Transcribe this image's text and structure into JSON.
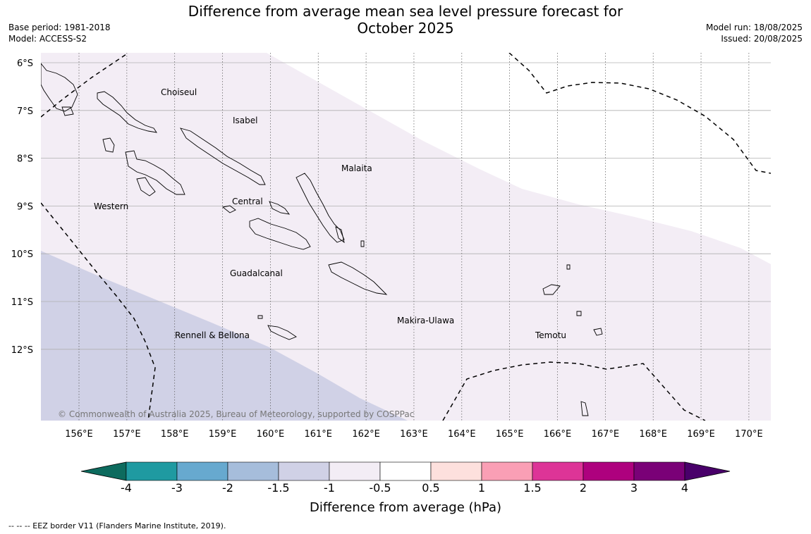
{
  "header": {
    "title_line1": "Difference from average mean sea level pressure forecast for",
    "title_line2": "October 2025",
    "base_period": "Base period: 1981-2018",
    "model": "Model: ACCESS-S2",
    "model_run": "Model run: 18/08/2025",
    "issued": "Issued: 20/08/2025"
  },
  "map": {
    "lat_labels": [
      "6°S",
      "7°S",
      "8°S",
      "9°S",
      "10°S",
      "11°S",
      "12°S"
    ],
    "lon_labels": [
      "156°E",
      "157°E",
      "158°E",
      "159°E",
      "160°E",
      "161°E",
      "162°E",
      "163°E",
      "164°E",
      "165°E",
      "166°E",
      "167°E",
      "168°E",
      "169°E",
      "170°E"
    ],
    "regions": {
      "choiseul": "Choiseul",
      "isabel": "Isabel",
      "malaita": "Malaita",
      "western": "Western",
      "central": "Central",
      "guadalcanal": "Guadalcanal",
      "makira": "Makira-Ulawa",
      "temotu": "Temotu",
      "rennell": "Rennell & Bellona"
    },
    "copyright": "© Commonwealth of Australia 2025, Bureau of Meteorology, supported by COSPPac",
    "colors": {
      "band_neg1_to_neg05": "#f3edf5",
      "band_neg15_to_neg1": "#d0d1e6",
      "land_outline": "#000000",
      "eez_border": "#000000"
    }
  },
  "colorbar": {
    "labels": [
      "-4",
      "-3",
      "-2",
      "-1.5",
      "-1",
      "-0.5",
      "0.5",
      "1",
      "1.5",
      "2",
      "3",
      "4"
    ],
    "colors": [
      "#0d6b5e",
      "#1f9aa1",
      "#67a9cf",
      "#a6bddb",
      "#d0d1e6",
      "#f3edf5",
      "#ffffff",
      "#fde0dd",
      "#fa9fb5",
      "#dd3497",
      "#ae017e",
      "#7a0177",
      "#49006a"
    ],
    "title": "Difference from average (hPa)"
  },
  "footnote": "--  --  -- EEZ border V11 (Flanders Marine Institute, 2019)."
}
